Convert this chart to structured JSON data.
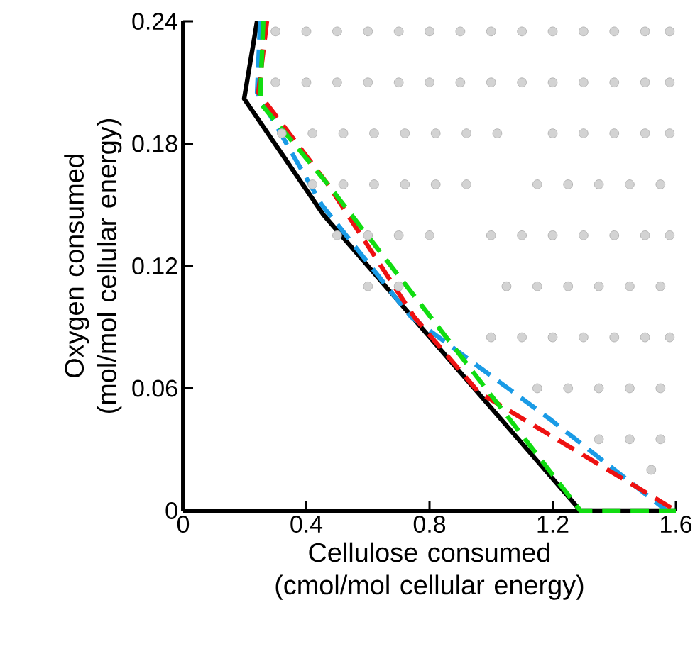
{
  "chart_data": {
    "type": "line",
    "xlabel": "Cellulose consumed (cmol/mol cellular energy)",
    "ylabel": "Oxygen consumed (mol/mol cellular energy)",
    "xlim": [
      0,
      1.6
    ],
    "ylim": [
      0,
      0.24
    ],
    "xticks": [
      0,
      0.4,
      0.8,
      1.2,
      1.6
    ],
    "yticks": [
      0,
      0.06,
      0.12,
      0.18,
      0.24
    ],
    "series": [
      {
        "type": "scatter",
        "marker": "circle",
        "color": "#d3d3d3",
        "x": [
          0.3,
          0.4,
          0.5,
          0.6,
          0.7,
          0.8,
          0.9,
          1.0,
          1.1,
          1.2,
          1.3,
          1.4,
          1.5,
          1.58,
          0.3,
          0.4,
          0.5,
          0.6,
          0.7,
          0.8,
          0.9,
          1.0,
          1.1,
          1.2,
          1.3,
          1.4,
          1.5,
          1.58,
          0.32,
          0.42,
          0.52,
          0.62,
          0.72,
          0.82,
          0.92,
          1.02,
          1.2,
          1.3,
          1.4,
          1.5,
          1.58,
          0.42,
          0.52,
          0.62,
          0.72,
          0.82,
          0.92,
          1.15,
          1.25,
          1.35,
          1.45,
          1.55,
          0.5,
          0.6,
          0.7,
          0.8,
          1.0,
          1.1,
          1.2,
          1.3,
          1.4,
          1.5,
          1.58,
          0.6,
          0.7,
          1.05,
          1.15,
          1.25,
          1.35,
          1.45,
          1.55,
          1.0,
          1.1,
          1.2,
          1.3,
          1.4,
          1.5,
          1.58,
          1.15,
          1.25,
          1.35,
          1.45,
          1.55,
          1.35,
          1.45,
          1.55,
          1.52
        ],
        "values": [
          0.235,
          0.235,
          0.235,
          0.235,
          0.235,
          0.235,
          0.235,
          0.235,
          0.235,
          0.235,
          0.235,
          0.235,
          0.235,
          0.235,
          0.21,
          0.21,
          0.21,
          0.21,
          0.21,
          0.21,
          0.21,
          0.21,
          0.21,
          0.21,
          0.21,
          0.21,
          0.21,
          0.21,
          0.185,
          0.185,
          0.185,
          0.185,
          0.185,
          0.185,
          0.185,
          0.185,
          0.185,
          0.185,
          0.185,
          0.185,
          0.185,
          0.16,
          0.16,
          0.16,
          0.16,
          0.16,
          0.16,
          0.16,
          0.16,
          0.16,
          0.16,
          0.16,
          0.135,
          0.135,
          0.135,
          0.135,
          0.135,
          0.135,
          0.135,
          0.135,
          0.135,
          0.135,
          0.135,
          0.11,
          0.11,
          0.11,
          0.11,
          0.11,
          0.11,
          0.11,
          0.11,
          0.085,
          0.085,
          0.085,
          0.085,
          0.085,
          0.085,
          0.085,
          0.06,
          0.06,
          0.06,
          0.06,
          0.06,
          0.035,
          0.035,
          0.035,
          0.02
        ]
      },
      {
        "line_style": "solid",
        "color": "#000000",
        "x": [
          0.24,
          0.198,
          0.456,
          1.29,
          1.6
        ],
        "values": [
          0.24,
          0.202,
          0.145,
          0,
          0
        ]
      },
      {
        "line_style": "dashed",
        "color": "#1a9be6",
        "x": [
          0.25,
          0.24,
          0.45,
          0.74,
          1.19,
          1.57
        ],
        "values": [
          0.24,
          0.205,
          0.15,
          0.095,
          0.045,
          0
        ]
      },
      {
        "line_style": "dashed",
        "color": "#ee1111",
        "x": [
          0.272,
          0.244,
          0.47,
          0.75,
          0.96,
          1.6
        ],
        "values": [
          0.24,
          0.205,
          0.16,
          0.095,
          0.058,
          0
        ]
      },
      {
        "line_style": "dashed",
        "color": "#11dd11",
        "x": [
          0.26,
          0.25,
          0.47,
          1.29,
          1.6
        ],
        "values": [
          0.24,
          0.2,
          0.16,
          0,
          0
        ]
      }
    ]
  }
}
